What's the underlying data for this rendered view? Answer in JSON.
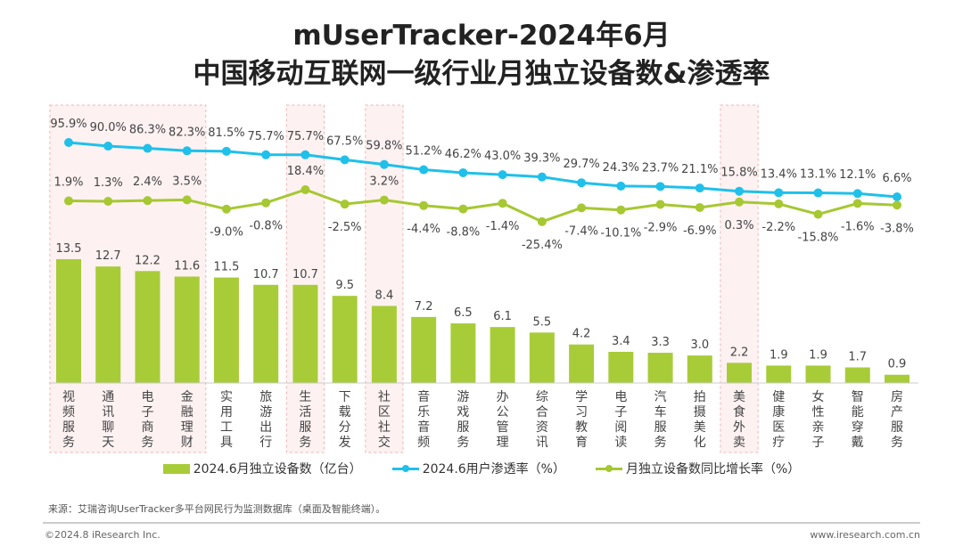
{
  "title_line1": "mUserTracker-2024年6月",
  "title_line2": "中国移动互联网一级行业月独立设备数&渗透率",
  "chart_data": {
    "type": "bar",
    "categories": [
      "视频服务",
      "通讯聊天",
      "电子商务",
      "金融理财",
      "实用工具",
      "旅游出行",
      "生活服务",
      "下载分发",
      "社区社交",
      "音乐音频",
      "游戏服务",
      "办公管理",
      "综合资讯",
      "学习教育",
      "电子阅读",
      "汽车服务",
      "拍摄美化",
      "美食外卖",
      "健康医疗",
      "女性亲子",
      "智能穿戴",
      "房产服务"
    ],
    "highlighted_categories": [
      "视频服务",
      "通讯聊天",
      "电子商务",
      "金融理财",
      "生活服务",
      "社区社交",
      "美食外卖"
    ],
    "series": [
      {
        "name": "2024.6月独立设备数（亿台）",
        "type": "bar",
        "color": "#a8cc38",
        "values": [
          13.5,
          12.7,
          12.2,
          11.6,
          11.5,
          10.7,
          10.7,
          9.5,
          8.4,
          7.2,
          6.5,
          6.1,
          5.5,
          4.2,
          3.4,
          3.3,
          3.0,
          2.2,
          1.9,
          1.9,
          1.7,
          0.9
        ]
      },
      {
        "name": "2024.6用户渗透率（%）",
        "type": "line",
        "color": "#1fc0ea",
        "unit": "%",
        "values": [
          95.9,
          90.0,
          86.3,
          82.3,
          81.5,
          75.7,
          75.7,
          67.5,
          59.8,
          51.2,
          46.2,
          43.0,
          39.3,
          29.7,
          24.3,
          23.7,
          21.1,
          15.8,
          13.4,
          13.1,
          12.1,
          6.6
        ]
      },
      {
        "name": "月独立设备数同比增长率（%）",
        "type": "line",
        "color": "#a6c832",
        "unit": "%",
        "values": [
          1.9,
          1.3,
          2.4,
          3.5,
          -9.0,
          -0.8,
          18.4,
          -2.5,
          3.2,
          -4.4,
          -8.8,
          -1.4,
          -25.4,
          -7.4,
          -10.1,
          -2.9,
          -6.9,
          0.3,
          -2.2,
          -15.8,
          -1.6,
          -3.8
        ]
      }
    ],
    "legend_position": "bottom",
    "grid": false
  },
  "source": "来源：艾瑞咨询UserTracker多平台网民行为监测数据库（桌面及智能终端）。",
  "footer_left": "©2024.8 iResearch Inc.",
  "footer_right": "www.iresearch.com.cn"
}
